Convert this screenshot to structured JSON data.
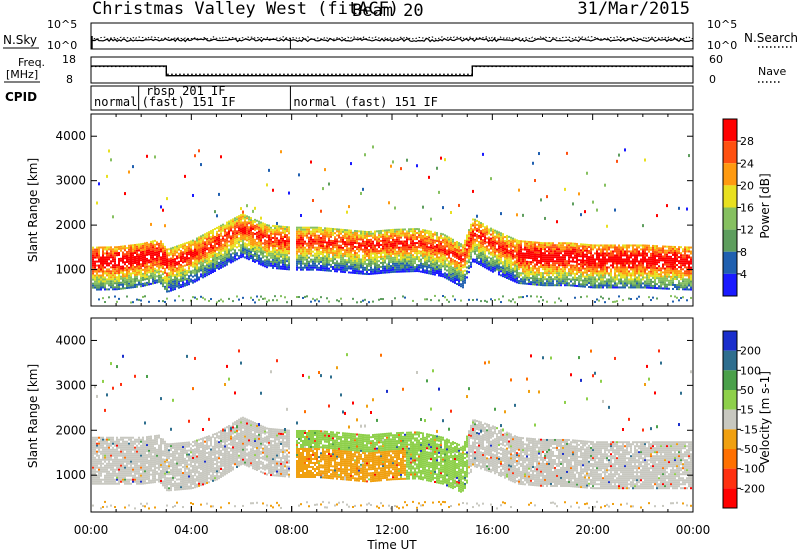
{
  "header": {
    "station": "Christmas Valley West (fitACF)",
    "beam": "Beam 20",
    "date": "31/Mar/2015"
  },
  "noise_panel": {
    "left_label": "N.Sky",
    "right_label": "N.Search",
    "left_ticks": [
      "10^5",
      "10^0"
    ],
    "right_ticks": [
      "10^5",
      "10^0"
    ]
  },
  "freq_panel": {
    "left_label_1": "Freq.",
    "left_label_2": "[MHz]",
    "right_label": "Nave",
    "left_ticks": [
      "18",
      "8"
    ],
    "right_ticks": [
      "60",
      "0"
    ],
    "freq_line": {
      "hours": [
        0,
        3.0,
        3.0,
        15.2,
        15.2,
        24
      ],
      "mhz": [
        14.5,
        14.5,
        10.8,
        10.8,
        14.5,
        14.5
      ]
    },
    "nave_line": {
      "hours": [
        0,
        3.0,
        3.0,
        15.2,
        15.2,
        24
      ],
      "value": [
        38,
        38,
        20,
        20,
        38,
        38
      ]
    }
  },
  "cpid": {
    "label": "CPID",
    "segments": [
      {
        "label": "normal",
        "start": 0.0,
        "end": 1.9
      },
      {
        "label": "(fast) 151 IF",
        "start": 1.9,
        "end": 7.95
      },
      {
        "label": "normal (fast) 151 IF",
        "start": 7.95,
        "end": 24
      }
    ],
    "extra_label": "rbsp 201 IF"
  },
  "xaxis": {
    "title": "Time UT",
    "ticks": [
      "00:00",
      "04:00",
      "08:00",
      "12:00",
      "16:00",
      "20:00",
      "00:00"
    ]
  },
  "chart_data": [
    {
      "type": "heatmap",
      "name": "Power",
      "ylabel": "Slant Range [km]",
      "yticks": [
        "1000",
        "2000",
        "3000",
        "4000"
      ],
      "ylim": [
        180,
        4500
      ],
      "xlim": [
        0,
        24
      ],
      "colorbar_label": "Power [dB]",
      "colorbar_ticks": [
        "4",
        "8",
        "12",
        "16",
        "20",
        "24",
        "28"
      ],
      "colorbar_colors": [
        "#1a1aff",
        "#2060b0",
        "#5e9e5e",
        "#86c060",
        "#e8e020",
        "#ff9a10",
        "#ff5010",
        "#ff0000"
      ],
      "main_band": {
        "hours": [
          0,
          1,
          2,
          2.7,
          3,
          4,
          5,
          6,
          7,
          8,
          9,
          10,
          11,
          12,
          13,
          14,
          14.8,
          15.2,
          16,
          17,
          18,
          19,
          20,
          21,
          22,
          23,
          24
        ],
        "center_km": [
          1200,
          1210,
          1280,
          1380,
          1150,
          1350,
          1650,
          1950,
          1700,
          1650,
          1650,
          1600,
          1550,
          1600,
          1620,
          1500,
          1250,
          1850,
          1600,
          1350,
          1300,
          1300,
          1250,
          1250,
          1250,
          1220,
          1200
        ]
      }
    },
    {
      "type": "heatmap",
      "name": "Velocity",
      "ylabel": "Slant Range [km]",
      "yticks": [
        "1000",
        "2000",
        "3000",
        "4000"
      ],
      "ylim": [
        180,
        4500
      ],
      "xlim": [
        0,
        24
      ],
      "colorbar_label": "Velocity [m s-1]",
      "colorbar_ticks": [
        "200",
        "100",
        "50",
        "15",
        "-15",
        "-50",
        "-100",
        "-200"
      ],
      "colorbar_colors": [
        "#1a2ecc",
        "#2e6e8e",
        "#4aa04a",
        "#8ed04a",
        "#c8c8c0",
        "#f0a010",
        "#ff7000",
        "#ff3010",
        "#ff0000"
      ],
      "main_band": {
        "hours": [
          0,
          1,
          2,
          2.7,
          3,
          4,
          5,
          6,
          7,
          8,
          9,
          10,
          11,
          12,
          13,
          14,
          14.8,
          15.2,
          16,
          17,
          18,
          19,
          20,
          21,
          22,
          23,
          24
        ],
        "center_km": [
          1500,
          1500,
          1500,
          1550,
          1350,
          1400,
          1600,
          1950,
          1700,
          1650,
          1650,
          1600,
          1550,
          1600,
          1620,
          1500,
          1300,
          1900,
          1750,
          1500,
          1450,
          1450,
          1400,
          1400,
          1400,
          1400,
          1400
        ]
      }
    }
  ]
}
